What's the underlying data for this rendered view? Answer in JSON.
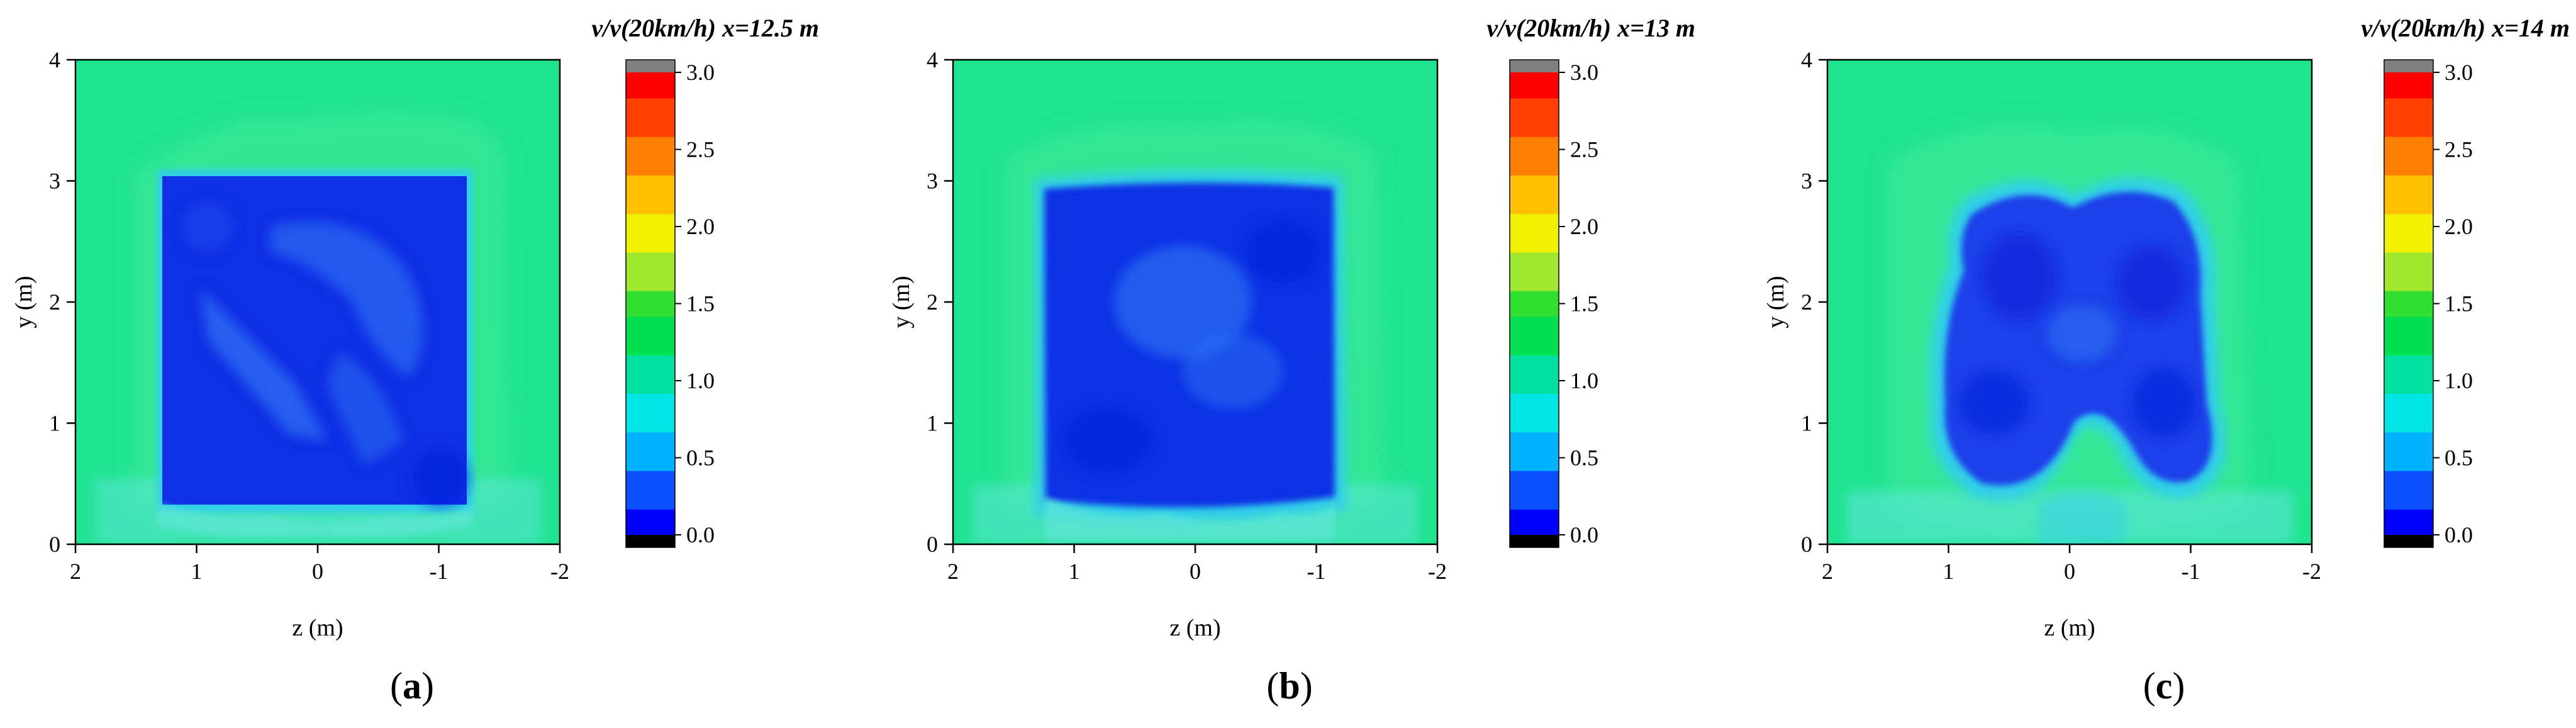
{
  "chart_data": [
    {
      "type": "heatmap",
      "panel_label": "a",
      "title": "v/v(20km/h) x=12.5 m",
      "xlabel": "z (m)",
      "ylabel": "y (m)",
      "xlim": [
        2,
        -2
      ],
      "ylim": [
        0,
        4
      ],
      "x_ticks": [
        "2",
        "1",
        "0",
        "-1",
        "-2"
      ],
      "y_ticks": [
        "0",
        "1",
        "2",
        "3",
        "4"
      ],
      "colorbar": {
        "min": 0.0,
        "max": 3.0,
        "ticks": [
          "0.0",
          "0.5",
          "1.0",
          "1.5",
          "2.0",
          "2.5",
          "3.0"
        ]
      },
      "wake_region": {
        "z_range": [
          1.25,
          -1.25
        ],
        "y_range": [
          0.3,
          3.05
        ],
        "value": 0.3
      },
      "ambient_value": 0.9
    },
    {
      "type": "heatmap",
      "panel_label": "b",
      "title": "v/v(20km/h) x=13 m",
      "xlabel": "z (m)",
      "ylabel": "y (m)",
      "xlim": [
        2,
        -2
      ],
      "ylim": [
        0,
        4
      ],
      "x_ticks": [
        "2",
        "1",
        "0",
        "-1",
        "-2"
      ],
      "y_ticks": [
        "0",
        "1",
        "2",
        "3",
        "4"
      ],
      "colorbar": {
        "min": 0.0,
        "max": 3.0,
        "ticks": [
          "0.0",
          "0.5",
          "1.0",
          "1.5",
          "2.0",
          "2.5",
          "3.0"
        ]
      },
      "wake_region": {
        "z_range": [
          1.2,
          -1.2
        ],
        "y_range": [
          0.35,
          3.0
        ],
        "value": 0.4
      },
      "ambient_value": 0.9
    },
    {
      "type": "heatmap",
      "panel_label": "c",
      "title": "v/v(20km/h) x=14 m",
      "xlabel": "z (m)",
      "ylabel": "y (m)",
      "xlim": [
        2,
        -2
      ],
      "ylim": [
        0,
        4
      ],
      "x_ticks": [
        "2",
        "1",
        "0",
        "-1",
        "-2"
      ],
      "y_ticks": [
        "0",
        "1",
        "2",
        "3",
        "4"
      ],
      "colorbar": {
        "min": 0.0,
        "max": 3.0,
        "ticks": [
          "0.0",
          "0.5",
          "1.0",
          "1.5",
          "2.0",
          "2.5",
          "3.0"
        ]
      },
      "wake_region": {
        "z_range": [
          1.25,
          -1.15
        ],
        "y_range": [
          0.35,
          2.95
        ],
        "value": 0.5
      },
      "ambient_value": 0.9
    }
  ],
  "colors": {
    "ambient": "#1ee38f",
    "ambient_light": "#3bea97",
    "wake_dark": "#1030e6",
    "wake_mid": "#2a55ee",
    "edge_cyan": "#33cfe9",
    "edge_light": "#5fe6d7"
  },
  "colorscale": [
    "#000000",
    "#0000ff",
    "#0a50ff",
    "#00b3ff",
    "#00e5e5",
    "#00e0a0",
    "#00e050",
    "#30e030",
    "#a0e830",
    "#f0f000",
    "#ffc000",
    "#ff8000",
    "#ff4000",
    "#ff0000",
    "#808080"
  ]
}
